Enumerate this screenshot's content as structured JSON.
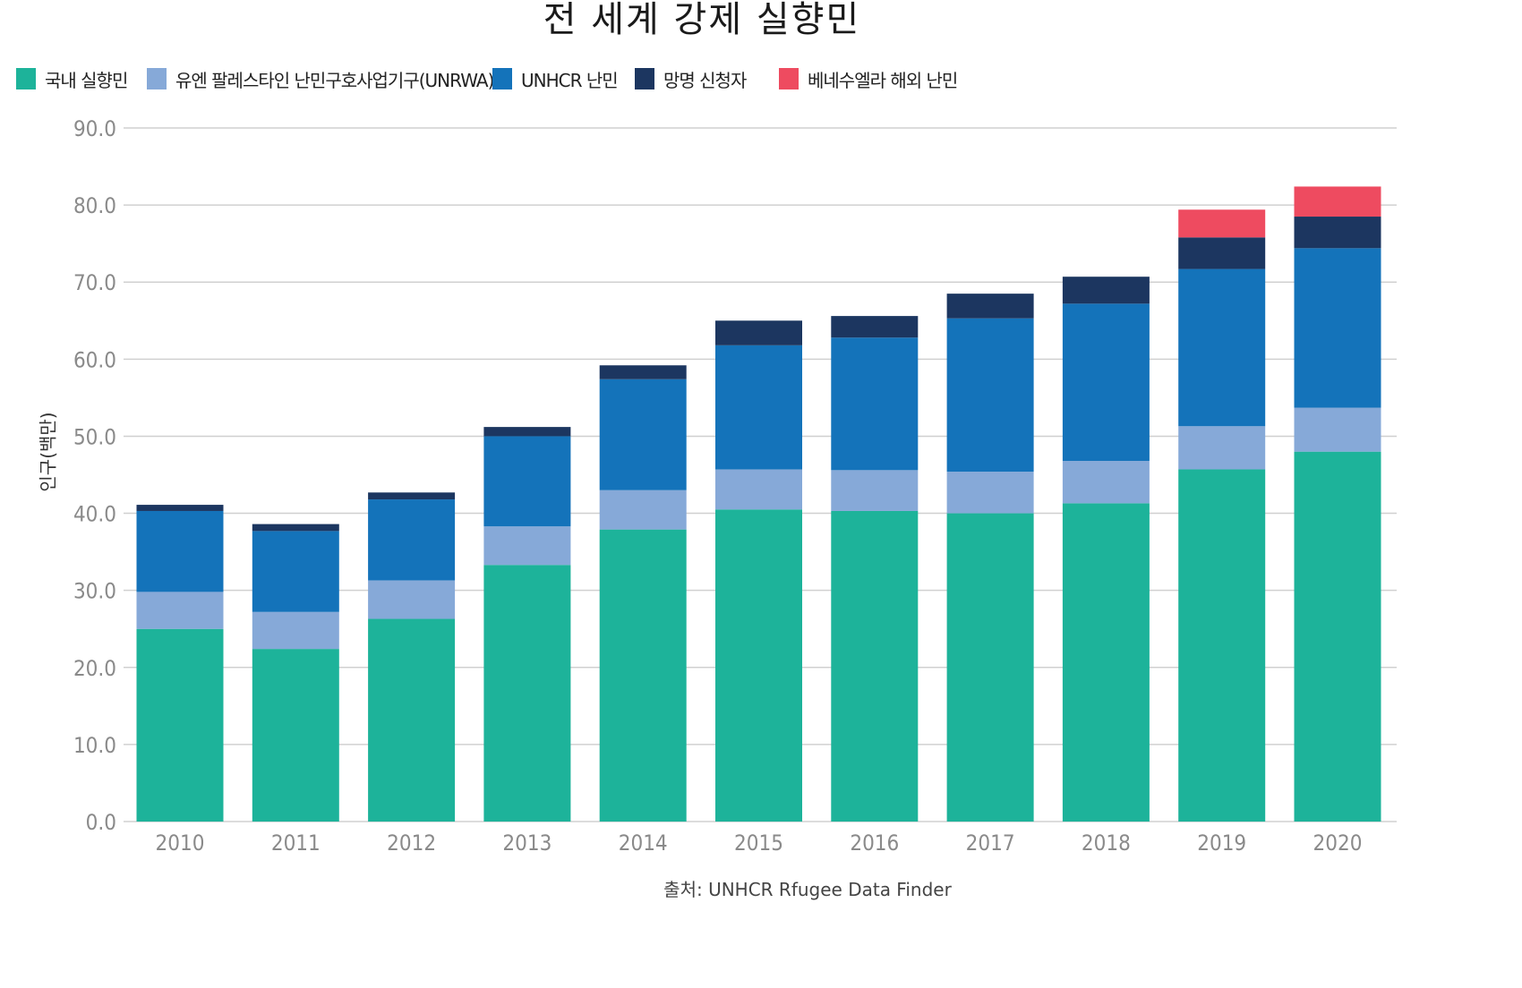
{
  "chart_data": {
    "type": "bar",
    "stacked": true,
    "title": "전 세계 강제 실향민",
    "ylabel": "인구(백만)",
    "xlabel": "",
    "source": "출처: UNHCR Rfugee Data Finder",
    "ylim": [
      0,
      90
    ],
    "yticks": [
      "0.0",
      "10.0",
      "20.0",
      "30.0",
      "40.0",
      "50.0",
      "60.0",
      "70.0",
      "80.0",
      "90.0"
    ],
    "grid": true,
    "legend_position": "top-left",
    "categories": [
      "2010",
      "2011",
      "2012",
      "2013",
      "2014",
      "2015",
      "2016",
      "2017",
      "2018",
      "2019",
      "2020"
    ],
    "series": [
      {
        "name": "국내 실향민",
        "color": "#1db39a",
        "values": [
          25.0,
          22.4,
          26.3,
          33.3,
          37.9,
          40.5,
          40.3,
          40.0,
          41.3,
          45.7,
          48.0
        ]
      },
      {
        "name": "유엔 팔레스타인 난민구호사업기구(UNRWA)",
        "color": "#86a9d8",
        "values": [
          4.8,
          4.8,
          5.0,
          5.0,
          5.1,
          5.2,
          5.3,
          5.4,
          5.5,
          5.6,
          5.7
        ]
      },
      {
        "name": "UNHCR 난민",
        "color": "#1473ba",
        "values": [
          10.5,
          10.5,
          10.5,
          11.7,
          14.4,
          16.1,
          17.2,
          19.9,
          20.4,
          20.4,
          20.7
        ]
      },
      {
        "name": "망명 신청자",
        "color": "#1c3660",
        "values": [
          0.8,
          0.9,
          0.9,
          1.2,
          1.8,
          3.2,
          2.8,
          3.2,
          3.5,
          4.1,
          4.1
        ]
      },
      {
        "name": "베네수엘라 해외 난민",
        "color": "#ee4b60",
        "values": [
          0,
          0,
          0,
          0,
          0,
          0,
          0,
          0,
          0,
          3.6,
          3.9
        ]
      }
    ]
  }
}
